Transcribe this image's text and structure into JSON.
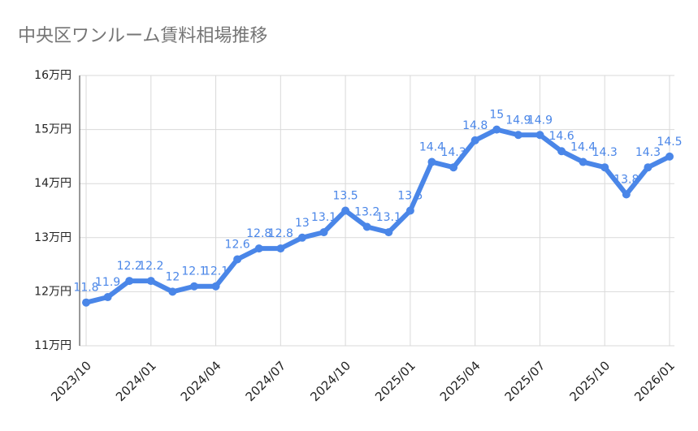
{
  "chart_data": {
    "type": "line",
    "title": "中央区ワンルーム賃料相場推移",
    "x": [
      "2023/10",
      null,
      null,
      "2024/01",
      null,
      null,
      "2024/04",
      null,
      null,
      "2024/07",
      null,
      null,
      "2024/10",
      null,
      null,
      "2025/01",
      null,
      null,
      "2025/04",
      null,
      null,
      "2025/07",
      null,
      null,
      "2025/10",
      null,
      null,
      "2026/01"
    ],
    "series": [
      {
        "color": "#4a86e8",
        "values": [
          11.8,
          11.9,
          12.2,
          12.2,
          12.0,
          12.1,
          12.1,
          12.6,
          12.8,
          12.8,
          13.0,
          13.1,
          13.5,
          13.2,
          13.1,
          13.5,
          14.4,
          14.3,
          14.8,
          15.0,
          14.9,
          14.9,
          14.6,
          14.4,
          14.3,
          13.8,
          14.3,
          14.5
        ]
      }
    ],
    "ylim": [
      11,
      16
    ],
    "yticks": [
      {
        "value": 11,
        "label": "11万円"
      },
      {
        "value": 12,
        "label": "12万円"
      },
      {
        "value": 13,
        "label": "13万円"
      },
      {
        "value": 14,
        "label": "14万円"
      },
      {
        "value": 15,
        "label": "15万円"
      },
      {
        "value": 16,
        "label": "16万円"
      }
    ],
    "grid": true
  }
}
